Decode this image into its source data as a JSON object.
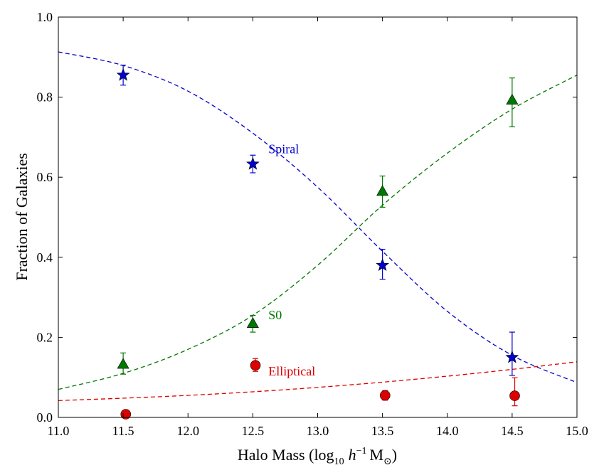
{
  "chart_data": {
    "type": "scatter",
    "title": "",
    "xlabel": "Halo Mass (log",
    "xlabel_sub": "10",
    "xlabel_h": "h",
    "xlabel_sup": "−1",
    "xlabel_unit": "M",
    "xlabel_odot": "⊙",
    "xlabel_close": ")",
    "ylabel": "Fraction of Galaxies",
    "xlim": [
      11.0,
      15.0
    ],
    "ylim": [
      0.0,
      1.0
    ],
    "xticks": [
      "11.0",
      "11.5",
      "12.0",
      "12.5",
      "13.0",
      "13.5",
      "14.0",
      "14.5",
      "15.0"
    ],
    "yticks": [
      "0.0",
      "0.2",
      "0.4",
      "0.6",
      "0.8",
      "1.0"
    ],
    "grid": false,
    "series": [
      {
        "name": "Spiral",
        "color": "#0000cc",
        "marker": "star",
        "points": [
          {
            "x": 11.5,
            "y": 0.855,
            "err_low": 0.025,
            "err_high": 0.025
          },
          {
            "x": 12.5,
            "y": 0.633,
            "err_low": 0.022,
            "err_high": 0.022
          },
          {
            "x": 13.5,
            "y": 0.38,
            "err_low": 0.035,
            "err_high": 0.04
          },
          {
            "x": 14.5,
            "y": 0.15,
            "err_low": 0.045,
            "err_high": 0.063
          }
        ],
        "fit": [
          [
            11.0,
            0.913
          ],
          [
            11.5,
            0.879
          ],
          [
            12.0,
            0.815
          ],
          [
            12.5,
            0.71
          ],
          [
            13.0,
            0.575
          ],
          [
            13.5,
            0.415
          ],
          [
            14.0,
            0.265
          ],
          [
            14.5,
            0.155
          ],
          [
            15.0,
            0.087
          ]
        ]
      },
      {
        "name": "S0",
        "color": "#007700",
        "marker": "triangle",
        "points": [
          {
            "x": 11.5,
            "y": 0.133,
            "err_low": 0.025,
            "err_high": 0.028
          },
          {
            "x": 12.5,
            "y": 0.235,
            "err_low": 0.022,
            "err_high": 0.02
          },
          {
            "x": 13.5,
            "y": 0.565,
            "err_low": 0.04,
            "err_high": 0.038
          },
          {
            "x": 14.5,
            "y": 0.793,
            "err_low": 0.067,
            "err_high": 0.055
          }
        ],
        "fit": [
          [
            11.0,
            0.07
          ],
          [
            11.5,
            0.11
          ],
          [
            12.0,
            0.17
          ],
          [
            12.5,
            0.255
          ],
          [
            13.0,
            0.38
          ],
          [
            13.5,
            0.53
          ],
          [
            14.0,
            0.66
          ],
          [
            14.5,
            0.77
          ],
          [
            15.0,
            0.855
          ]
        ]
      },
      {
        "name": "Elliptical",
        "color": "#dd0000",
        "marker": "circle",
        "points": [
          {
            "x": 11.52,
            "y": 0.008,
            "err_low": 0.005,
            "err_high": 0.005
          },
          {
            "x": 12.52,
            "y": 0.13,
            "err_low": 0.015,
            "err_high": 0.017
          },
          {
            "x": 13.52,
            "y": 0.055,
            "err_low": 0.012,
            "err_high": 0.012
          },
          {
            "x": 14.52,
            "y": 0.054,
            "err_low": 0.025,
            "err_high": 0.045
          }
        ],
        "fit": [
          [
            11.0,
            0.042
          ],
          [
            11.5,
            0.048
          ],
          [
            12.0,
            0.055
          ],
          [
            12.5,
            0.064
          ],
          [
            13.0,
            0.075
          ],
          [
            13.5,
            0.088
          ],
          [
            14.0,
            0.103
          ],
          [
            14.5,
            0.12
          ],
          [
            15.0,
            0.139
          ]
        ]
      }
    ],
    "annotations": [
      {
        "text": "Spiral",
        "series": 0,
        "x": 12.62,
        "y": 0.66
      },
      {
        "text": "S0",
        "series": 1,
        "x": 12.62,
        "y": 0.245
      },
      {
        "text": "Elliptical",
        "series": 2,
        "x": 12.62,
        "y": 0.105
      }
    ]
  }
}
